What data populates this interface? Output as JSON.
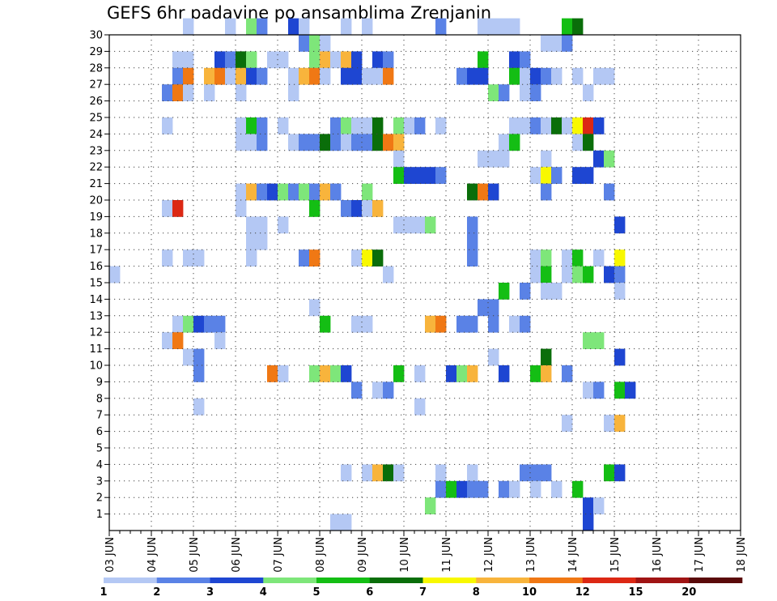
{
  "chart_data": {
    "type": "heatmap",
    "title": "GEFS 6hr padavine po ansamblima Zrenjanin",
    "x_ticks": [
      "03 JUN",
      "04 JUN",
      "05 JUN",
      "06 JUN",
      "07 JUN",
      "08 JUN",
      "09 JUN",
      "10 JUN",
      "11 JUN",
      "12 JUN",
      "13 JUN",
      "14 JUN",
      "15 JUN",
      "16 JUN",
      "17 JUN",
      "18 JUN"
    ],
    "y_ticks": [
      1,
      2,
      3,
      4,
      5,
      6,
      7,
      8,
      9,
      10,
      11,
      12,
      13,
      14,
      15,
      16,
      17,
      18,
      19,
      20,
      21,
      22,
      23,
      24,
      25,
      26,
      27,
      28,
      29,
      30
    ],
    "ylim": [
      0,
      30
    ],
    "steps_per_day": 4,
    "grid": true,
    "scale": {
      "labels": [
        "1",
        "2",
        "3",
        "4",
        "5",
        "6",
        "7",
        "8",
        "10",
        "12",
        "15",
        "20"
      ],
      "colors": [
        "#b4c8f4",
        "#5a82e6",
        "#1e46d2",
        "#7ee67a",
        "#14be14",
        "#0a6e0a",
        "#f8f800",
        "#f8b43c",
        "#f07814",
        "#dc2814",
        "#a01414",
        "#5a0a0a"
      ]
    },
    "cells": [
      [
        30,
        7,
        1
      ],
      [
        30,
        11,
        1
      ],
      [
        30,
        13,
        4
      ],
      [
        30,
        14,
        2
      ],
      [
        30,
        17,
        3
      ],
      [
        30,
        18,
        1
      ],
      [
        30,
        22,
        1
      ],
      [
        30,
        24,
        1
      ],
      [
        30,
        31,
        2
      ],
      [
        30,
        35,
        1
      ],
      [
        30,
        36,
        1
      ],
      [
        30,
        37,
        1
      ],
      [
        30,
        38,
        1
      ],
      [
        30,
        43,
        5
      ],
      [
        30,
        44,
        6
      ],
      [
        29,
        18,
        2
      ],
      [
        29,
        19,
        4
      ],
      [
        29,
        20,
        1
      ],
      [
        29,
        41,
        1
      ],
      [
        29,
        42,
        1
      ],
      [
        29,
        43,
        2
      ],
      [
        28,
        6,
        1
      ],
      [
        28,
        7,
        1
      ],
      [
        28,
        10,
        3
      ],
      [
        28,
        11,
        2
      ],
      [
        28,
        12,
        6
      ],
      [
        28,
        13,
        4
      ],
      [
        28,
        15,
        1
      ],
      [
        28,
        16,
        1
      ],
      [
        28,
        19,
        4
      ],
      [
        28,
        20,
        8
      ],
      [
        28,
        21,
        1
      ],
      [
        28,
        22,
        8
      ],
      [
        28,
        23,
        3
      ],
      [
        28,
        25,
        3
      ],
      [
        28,
        26,
        2
      ],
      [
        28,
        35,
        5
      ],
      [
        28,
        38,
        3
      ],
      [
        28,
        39,
        2
      ],
      [
        27,
        6,
        2
      ],
      [
        27,
        7,
        9
      ],
      [
        27,
        9,
        8
      ],
      [
        27,
        10,
        9
      ],
      [
        27,
        11,
        1
      ],
      [
        27,
        12,
        8
      ],
      [
        27,
        13,
        3
      ],
      [
        27,
        14,
        2
      ],
      [
        27,
        17,
        1
      ],
      [
        27,
        18,
        8
      ],
      [
        27,
        19,
        9
      ],
      [
        27,
        20,
        1
      ],
      [
        27,
        22,
        3
      ],
      [
        27,
        23,
        3
      ],
      [
        27,
        24,
        1
      ],
      [
        27,
        25,
        1
      ],
      [
        27,
        26,
        9
      ],
      [
        27,
        33,
        2
      ],
      [
        27,
        34,
        3
      ],
      [
        27,
        35,
        3
      ],
      [
        27,
        38,
        5
      ],
      [
        27,
        39,
        1
      ],
      [
        27,
        40,
        3
      ],
      [
        27,
        41,
        2
      ],
      [
        27,
        42,
        1
      ],
      [
        27,
        44,
        1
      ],
      [
        27,
        46,
        1
      ],
      [
        27,
        47,
        1
      ],
      [
        26,
        5,
        2
      ],
      [
        26,
        6,
        9
      ],
      [
        26,
        7,
        1
      ],
      [
        26,
        9,
        1
      ],
      [
        26,
        12,
        1
      ],
      [
        26,
        17,
        1
      ],
      [
        26,
        36,
        4
      ],
      [
        26,
        37,
        2
      ],
      [
        26,
        39,
        1
      ],
      [
        26,
        40,
        2
      ],
      [
        26,
        45,
        1
      ],
      [
        24,
        5,
        1
      ],
      [
        24,
        12,
        1
      ],
      [
        24,
        13,
        5
      ],
      [
        24,
        14,
        2
      ],
      [
        24,
        16,
        1
      ],
      [
        24,
        21,
        2
      ],
      [
        24,
        22,
        4
      ],
      [
        24,
        23,
        1
      ],
      [
        24,
        24,
        1
      ],
      [
        24,
        25,
        6
      ],
      [
        24,
        27,
        4
      ],
      [
        24,
        28,
        1
      ],
      [
        24,
        29,
        2
      ],
      [
        24,
        31,
        1
      ],
      [
        24,
        38,
        1
      ],
      [
        24,
        39,
        1
      ],
      [
        24,
        40,
        2
      ],
      [
        24,
        41,
        1
      ],
      [
        24,
        42,
        6
      ],
      [
        24,
        43,
        1
      ],
      [
        24,
        44,
        7
      ],
      [
        24,
        45,
        10
      ],
      [
        24,
        46,
        3
      ],
      [
        23,
        12,
        1
      ],
      [
        23,
        13,
        1
      ],
      [
        23,
        14,
        2
      ],
      [
        23,
        17,
        1
      ],
      [
        23,
        18,
        2
      ],
      [
        23,
        19,
        2
      ],
      [
        23,
        20,
        6
      ],
      [
        23,
        21,
        2
      ],
      [
        23,
        22,
        1
      ],
      [
        23,
        23,
        2
      ],
      [
        23,
        24,
        2
      ],
      [
        23,
        25,
        6
      ],
      [
        23,
        26,
        9
      ],
      [
        23,
        27,
        8
      ],
      [
        23,
        37,
        1
      ],
      [
        23,
        38,
        5
      ],
      [
        23,
        44,
        1
      ],
      [
        23,
        45,
        6
      ],
      [
        22,
        27,
        1
      ],
      [
        22,
        35,
        1
      ],
      [
        22,
        36,
        1
      ],
      [
        22,
        37,
        1
      ],
      [
        22,
        41,
        1
      ],
      [
        22,
        46,
        3
      ],
      [
        22,
        47,
        4
      ],
      [
        21,
        27,
        5
      ],
      [
        21,
        28,
        3
      ],
      [
        21,
        29,
        3
      ],
      [
        21,
        30,
        3
      ],
      [
        21,
        31,
        2
      ],
      [
        21,
        40,
        1
      ],
      [
        21,
        41,
        7
      ],
      [
        21,
        42,
        2
      ],
      [
        21,
        44,
        3
      ],
      [
        21,
        45,
        3
      ],
      [
        20,
        12,
        1
      ],
      [
        20,
        13,
        8
      ],
      [
        20,
        14,
        2
      ],
      [
        20,
        15,
        3
      ],
      [
        20,
        16,
        4
      ],
      [
        20,
        17,
        2
      ],
      [
        20,
        18,
        4
      ],
      [
        20,
        19,
        2
      ],
      [
        20,
        20,
        8
      ],
      [
        20,
        21,
        2
      ],
      [
        20,
        24,
        4
      ],
      [
        20,
        34,
        6
      ],
      [
        20,
        35,
        9
      ],
      [
        20,
        36,
        3
      ],
      [
        20,
        41,
        2
      ],
      [
        20,
        47,
        2
      ],
      [
        19,
        5,
        1
      ],
      [
        19,
        6,
        10
      ],
      [
        19,
        12,
        1
      ],
      [
        19,
        19,
        5
      ],
      [
        19,
        22,
        2
      ],
      [
        19,
        23,
        3
      ],
      [
        19,
        24,
        1
      ],
      [
        19,
        25,
        8
      ],
      [
        18,
        13,
        1
      ],
      [
        18,
        14,
        1
      ],
      [
        18,
        16,
        1
      ],
      [
        18,
        27,
        1
      ],
      [
        18,
        28,
        1
      ],
      [
        18,
        29,
        1
      ],
      [
        18,
        30,
        4
      ],
      [
        18,
        34,
        2
      ],
      [
        18,
        48,
        3
      ],
      [
        17,
        13,
        1
      ],
      [
        17,
        14,
        1
      ],
      [
        17,
        34,
        2
      ],
      [
        16,
        5,
        1
      ],
      [
        16,
        7,
        1
      ],
      [
        16,
        8,
        1
      ],
      [
        16,
        13,
        1
      ],
      [
        16,
        18,
        2
      ],
      [
        16,
        19,
        9
      ],
      [
        16,
        23,
        1
      ],
      [
        16,
        24,
        7
      ],
      [
        16,
        25,
        6
      ],
      [
        16,
        34,
        2
      ],
      [
        16,
        40,
        1
      ],
      [
        16,
        41,
        4
      ],
      [
        16,
        43,
        1
      ],
      [
        16,
        44,
        5
      ],
      [
        16,
        46,
        1
      ],
      [
        16,
        48,
        7
      ],
      [
        15,
        0,
        1
      ],
      [
        15,
        26,
        1
      ],
      [
        15,
        40,
        1
      ],
      [
        15,
        41,
        5
      ],
      [
        15,
        43,
        1
      ],
      [
        15,
        44,
        4
      ],
      [
        15,
        45,
        5
      ],
      [
        15,
        47,
        3
      ],
      [
        15,
        48,
        2
      ],
      [
        14,
        37,
        5
      ],
      [
        14,
        39,
        2
      ],
      [
        14,
        41,
        1
      ],
      [
        14,
        42,
        1
      ],
      [
        14,
        48,
        1
      ],
      [
        13,
        19,
        1
      ],
      [
        13,
        35,
        2
      ],
      [
        13,
        36,
        2
      ],
      [
        12,
        6,
        1
      ],
      [
        12,
        7,
        4
      ],
      [
        12,
        8,
        3
      ],
      [
        12,
        9,
        2
      ],
      [
        12,
        10,
        2
      ],
      [
        12,
        20,
        5
      ],
      [
        12,
        23,
        1
      ],
      [
        12,
        24,
        1
      ],
      [
        12,
        30,
        8
      ],
      [
        12,
        31,
        9
      ],
      [
        12,
        33,
        2
      ],
      [
        12,
        34,
        2
      ],
      [
        12,
        36,
        2
      ],
      [
        12,
        38,
        1
      ],
      [
        12,
        39,
        2
      ],
      [
        11,
        5,
        1
      ],
      [
        11,
        6,
        9
      ],
      [
        11,
        10,
        1
      ],
      [
        11,
        45,
        4
      ],
      [
        11,
        46,
        4
      ],
      [
        10,
        7,
        1
      ],
      [
        10,
        8,
        2
      ],
      [
        10,
        36,
        1
      ],
      [
        10,
        41,
        6
      ],
      [
        10,
        48,
        3
      ],
      [
        9,
        8,
        2
      ],
      [
        9,
        15,
        9
      ],
      [
        9,
        16,
        1
      ],
      [
        9,
        19,
        4
      ],
      [
        9,
        20,
        8
      ],
      [
        9,
        21,
        4
      ],
      [
        9,
        22,
        3
      ],
      [
        9,
        27,
        5
      ],
      [
        9,
        29,
        1
      ],
      [
        9,
        32,
        3
      ],
      [
        9,
        33,
        4
      ],
      [
        9,
        34,
        8
      ],
      [
        9,
        37,
        3
      ],
      [
        9,
        40,
        5
      ],
      [
        9,
        41,
        8
      ],
      [
        9,
        43,
        2
      ],
      [
        8,
        23,
        2
      ],
      [
        8,
        25,
        1
      ],
      [
        8,
        26,
        2
      ],
      [
        8,
        45,
        1
      ],
      [
        8,
        46,
        2
      ],
      [
        8,
        48,
        5
      ],
      [
        8,
        49,
        3
      ],
      [
        7,
        8,
        1
      ],
      [
        7,
        29,
        1
      ],
      [
        6,
        43,
        1
      ],
      [
        6,
        47,
        1
      ],
      [
        6,
        48,
        8
      ],
      [
        3,
        22,
        1
      ],
      [
        3,
        24,
        1
      ],
      [
        3,
        25,
        8
      ],
      [
        3,
        26,
        6
      ],
      [
        3,
        27,
        1
      ],
      [
        3,
        31,
        1
      ],
      [
        3,
        34,
        1
      ],
      [
        3,
        39,
        2
      ],
      [
        3,
        40,
        2
      ],
      [
        3,
        41,
        2
      ],
      [
        3,
        47,
        5
      ],
      [
        3,
        48,
        3
      ],
      [
        2,
        31,
        2
      ],
      [
        2,
        32,
        5
      ],
      [
        2,
        33,
        3
      ],
      [
        2,
        34,
        2
      ],
      [
        2,
        35,
        2
      ],
      [
        2,
        37,
        2
      ],
      [
        2,
        38,
        1
      ],
      [
        2,
        40,
        1
      ],
      [
        2,
        42,
        1
      ],
      [
        2,
        44,
        5
      ],
      [
        1,
        30,
        4
      ],
      [
        1,
        45,
        3
      ],
      [
        1,
        46,
        1
      ],
      [
        0,
        21,
        1
      ],
      [
        0,
        22,
        1
      ],
      [
        0,
        45,
        3
      ]
    ]
  }
}
